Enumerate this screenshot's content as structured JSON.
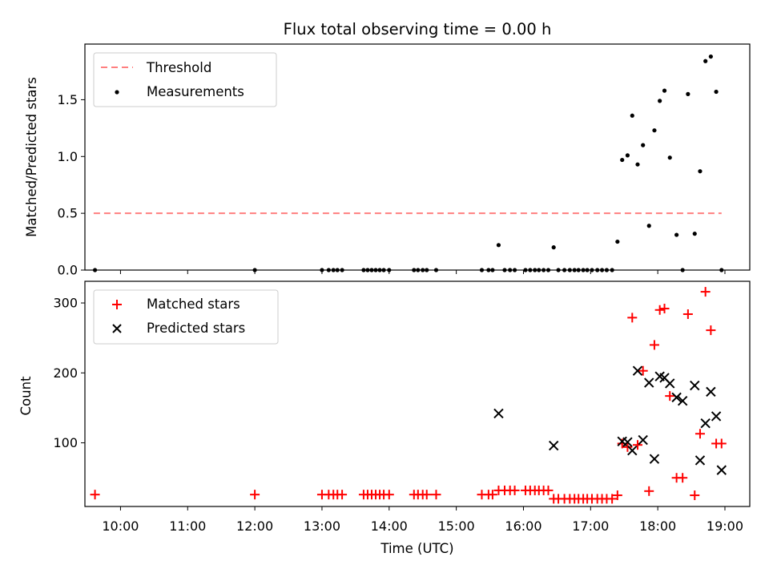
{
  "chart_data": [
    {
      "type": "scatter",
      "title": "Flux total observing time = 0.00 h",
      "xlabel": "",
      "ylabel": "Matched/Predicted stars",
      "xlim": [
        9.47,
        19.37
      ],
      "ylim": [
        0.0,
        1.99
      ],
      "yticks": [
        0.0,
        0.5,
        1.0,
        1.5
      ],
      "ytick_labels": [
        "0.0",
        "0.5",
        "1.0",
        "1.5"
      ],
      "legend_position": "upper-left",
      "grid": false,
      "series": [
        {
          "name": "Threshold",
          "kind": "line",
          "style": "dashed",
          "color": "#ff7f7f",
          "x": [
            9.6,
            18.95
          ],
          "y": [
            0.5,
            0.5
          ]
        },
        {
          "name": "Measurements",
          "kind": "scatter",
          "marker": "dot",
          "color": "#000000",
          "x": [
            9.62,
            12.0,
            13.0,
            13.1,
            13.17,
            13.23,
            13.3,
            13.62,
            13.68,
            13.74,
            13.8,
            13.86,
            13.92,
            14.0,
            14.37,
            14.43,
            14.5,
            14.56,
            14.7,
            15.38,
            15.48,
            15.54,
            15.63,
            15.72,
            15.8,
            15.87,
            16.03,
            16.1,
            16.17,
            16.23,
            16.3,
            16.37,
            16.45,
            16.52,
            16.61,
            16.69,
            16.76,
            16.82,
            16.89,
            16.95,
            17.02,
            17.1,
            17.17,
            17.24,
            17.32,
            17.4,
            17.47,
            17.55,
            17.62,
            17.7,
            17.78,
            17.87,
            17.95,
            18.03,
            18.1,
            18.18,
            18.28,
            18.37,
            18.45,
            18.55,
            18.63,
            18.71,
            18.79,
            18.87,
            18.95
          ],
          "y": [
            0.0,
            0.0,
            0.0,
            0.0,
            0.0,
            0.0,
            0.0,
            0.0,
            0.0,
            0.0,
            0.0,
            0.0,
            0.0,
            0.0,
            0.0,
            0.0,
            0.0,
            0.0,
            0.0,
            0.0,
            0.0,
            0.0,
            0.22,
            0.0,
            0.0,
            0.0,
            0.0,
            0.0,
            0.0,
            0.0,
            0.0,
            0.0,
            0.2,
            0.0,
            0.0,
            0.0,
            0.0,
            0.0,
            0.0,
            0.0,
            0.0,
            0.0,
            0.0,
            0.0,
            0.0,
            0.25,
            0.97,
            1.01,
            1.36,
            0.93,
            1.1,
            0.39,
            1.23,
            1.49,
            1.58,
            0.99,
            0.31,
            0.0,
            1.55,
            0.32,
            0.87,
            1.84,
            1.88,
            1.57,
            0.0
          ]
        }
      ]
    },
    {
      "type": "scatter",
      "title": "",
      "xlabel": "Time (UTC)",
      "ylabel": "Count",
      "xlim": [
        9.47,
        19.37
      ],
      "ylim": [
        9,
        331
      ],
      "yticks": [
        100,
        200,
        300
      ],
      "ytick_labels": [
        "100",
        "200",
        "300"
      ],
      "xticks": [
        10,
        11,
        12,
        13,
        14,
        15,
        16,
        17,
        18,
        19
      ],
      "xtick_labels": [
        "10:00",
        "11:00",
        "12:00",
        "13:00",
        "14:00",
        "15:00",
        "16:00",
        "17:00",
        "18:00",
        "19:00"
      ],
      "legend_position": "upper-left",
      "grid": false,
      "series": [
        {
          "name": "Matched stars",
          "kind": "scatter",
          "marker": "plus",
          "color": "#ff0000",
          "x": [
            9.62,
            12.0,
            13.0,
            13.1,
            13.17,
            13.23,
            13.3,
            13.62,
            13.68,
            13.74,
            13.8,
            13.86,
            13.92,
            14.0,
            14.37,
            14.43,
            14.5,
            14.56,
            14.7,
            15.38,
            15.48,
            15.54,
            15.63,
            15.72,
            15.8,
            15.87,
            16.03,
            16.1,
            16.17,
            16.23,
            16.3,
            16.37,
            16.45,
            16.52,
            16.61,
            16.69,
            16.76,
            16.82,
            16.89,
            16.95,
            17.02,
            17.1,
            17.17,
            17.24,
            17.32,
            17.4,
            17.47,
            17.55,
            17.62,
            17.7,
            17.78,
            17.87,
            17.95,
            18.03,
            18.1,
            18.18,
            18.28,
            18.37,
            18.45,
            18.55,
            18.63,
            18.71,
            18.79,
            18.87,
            18.95
          ],
          "y": [
            26,
            26,
            26,
            26,
            26,
            26,
            26,
            26,
            26,
            26,
            26,
            26,
            26,
            26,
            26,
            26,
            26,
            26,
            26,
            26,
            26,
            26,
            32,
            32,
            32,
            32,
            32,
            32,
            32,
            32,
            32,
            32,
            20,
            20,
            20,
            20,
            20,
            20,
            20,
            20,
            20,
            20,
            20,
            20,
            20,
            25,
            99,
            94,
            279,
            97,
            203,
            31,
            240,
            290,
            292,
            167,
            50,
            50,
            284,
            25,
            113,
            316,
            261,
            99,
            99
          ]
        },
        {
          "name": "Predicted stars",
          "kind": "scatter",
          "marker": "x",
          "color": "#000000",
          "x": [
            15.63,
            16.45,
            17.47,
            17.55,
            17.62,
            17.7,
            17.78,
            17.87,
            17.95,
            18.03,
            18.1,
            18.18,
            18.28,
            18.37,
            18.55,
            18.63,
            18.71,
            18.79,
            18.87,
            18.95
          ],
          "y": [
            142,
            96,
            102,
            101,
            89,
            203,
            104,
            186,
            77,
            195,
            193,
            185,
            165,
            160,
            182,
            75,
            128,
            173,
            138,
            61
          ]
        }
      ]
    }
  ]
}
